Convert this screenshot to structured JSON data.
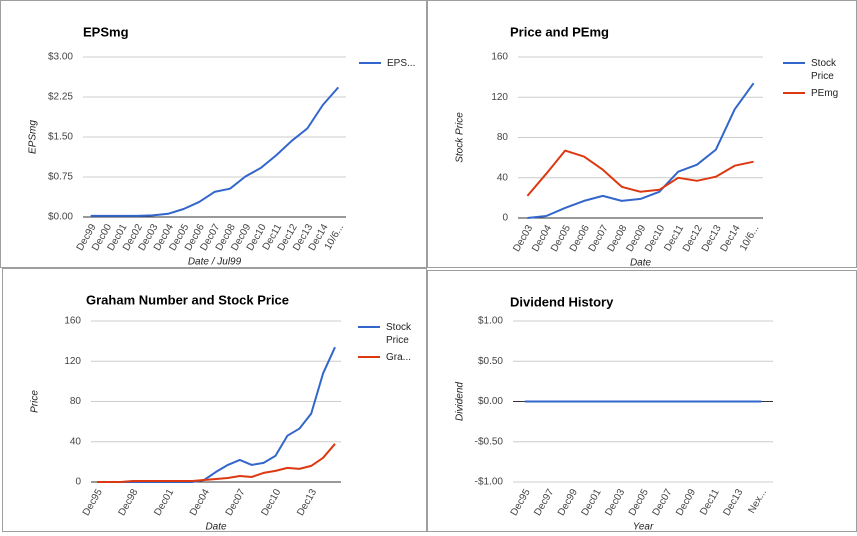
{
  "chart_data": [
    {
      "type": "line",
      "title": "EPSmg",
      "x_label": "Date / Jul99",
      "y_label": "EPSmg",
      "categories": [
        "Dec99",
        "Dec00",
        "Dec01",
        "Dec02",
        "Dec03",
        "Dec04",
        "Dec05",
        "Dec06",
        "Dec07",
        "Dec08",
        "Dec09",
        "Dec10",
        "Dec11",
        "Dec12",
        "Dec13",
        "Dec14",
        "10/6..."
      ],
      "series": [
        {
          "name": "EPS...",
          "color": "#3366cc",
          "values": [
            0.02,
            0.02,
            0.02,
            0.02,
            0.03,
            0.06,
            0.15,
            0.28,
            0.47,
            0.53,
            0.76,
            0.92,
            1.16,
            1.43,
            1.66,
            2.1,
            2.43
          ]
        }
      ],
      "ylim": [
        0,
        3
      ],
      "yticks": [
        {
          "value": 0,
          "label": "$0.00"
        },
        {
          "value": 0.75,
          "label": "$0.75"
        },
        {
          "value": 1.5,
          "label": "$1.50"
        },
        {
          "value": 2.25,
          "label": "$2.25"
        },
        {
          "value": 3,
          "label": "$3.00"
        }
      ],
      "grid": true
    },
    {
      "type": "line",
      "title": "Price and PEmg",
      "x_label": "Date",
      "y_label": "Stock Price",
      "categories": [
        "Dec03",
        "Dec04",
        "Dec05",
        "Dec06",
        "Dec07",
        "Dec08",
        "Dec09",
        "Dec10",
        "Dec11",
        "Dec12",
        "Dec13",
        "Dec14",
        "10/6..."
      ],
      "series": [
        {
          "name": "Stock Price",
          "color": "#3366cc",
          "values": [
            0,
            2,
            10,
            17,
            22,
            17,
            19,
            26,
            46,
            53,
            68,
            108,
            134
          ]
        },
        {
          "name": "PEmg",
          "color": "#dc3912",
          "values": [
            22,
            44,
            67,
            61,
            48,
            31,
            26,
            28,
            40,
            37,
            41,
            52,
            56
          ]
        }
      ],
      "ylim": [
        0,
        160
      ],
      "yticks": [
        0,
        40,
        80,
        120,
        160
      ],
      "grid": true
    },
    {
      "type": "line",
      "title": "Graham Number and Stock Price",
      "x_label": "Date",
      "y_label": "Price",
      "categories": [
        "Dec95",
        null,
        null,
        "Dec98",
        null,
        null,
        "Dec01",
        null,
        null,
        "Dec04",
        null,
        null,
        "Dec07",
        null,
        null,
        "Dec10",
        null,
        null,
        "Dec13",
        null,
        null
      ],
      "series": [
        {
          "name": "Stock Price",
          "color": "#3366cc",
          "values": [
            0,
            0,
            0,
            0,
            0,
            0,
            0,
            0,
            0,
            2,
            10,
            17,
            22,
            17,
            19,
            26,
            46,
            53,
            68,
            108,
            134
          ]
        },
        {
          "name": "Gra...",
          "color": "#dc3912",
          "values": [
            0,
            0,
            0,
            1,
            1,
            1,
            1,
            1,
            1,
            2,
            3,
            4,
            6,
            5,
            9,
            11,
            14,
            13,
            16,
            24,
            38
          ]
        }
      ],
      "ylim": [
        0,
        160
      ],
      "yticks": [
        0,
        40,
        80,
        120,
        160
      ],
      "grid": true
    },
    {
      "type": "line",
      "title": "Dividend History",
      "x_label": "Year",
      "y_label": "Dividend",
      "categories": [
        "Dec95",
        "Dec97",
        "Dec99",
        "Dec01",
        "Dec03",
        "Dec05",
        "Dec07",
        "Dec09",
        "Dec11",
        "Dec13",
        "Nex..."
      ],
      "series": [
        {
          "color": "#3366cc",
          "values": [
            0,
            0,
            0,
            0,
            0,
            0,
            0,
            0,
            0,
            0,
            0
          ]
        }
      ],
      "ylim": [
        -1,
        1
      ],
      "yticks": [
        {
          "value": -1,
          "label": "-$1.00"
        },
        {
          "value": -0.5,
          "label": "-$0.50"
        },
        {
          "value": 0,
          "label": "$0.00"
        },
        {
          "value": 0.5,
          "label": "$0.50"
        },
        {
          "value": 1,
          "label": "$1.00"
        }
      ],
      "grid": true
    }
  ]
}
